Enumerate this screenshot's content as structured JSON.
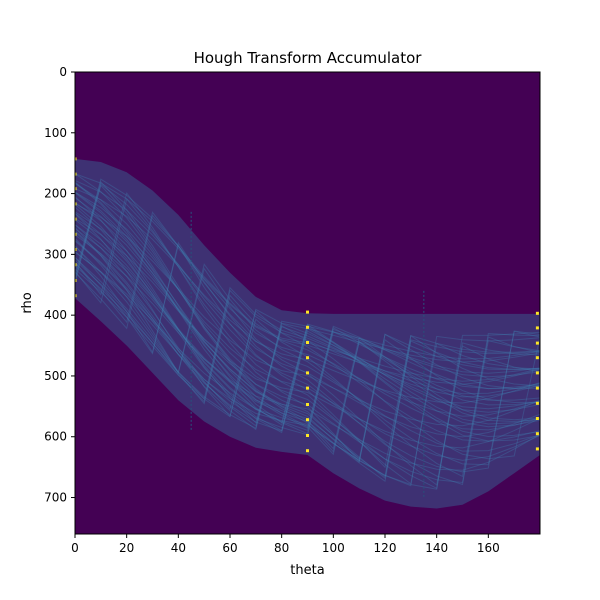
{
  "chart_data": {
    "type": "heatmap",
    "title": "Hough Transform Accumulator",
    "xlabel": "theta",
    "ylabel": "rho",
    "xlim": [
      0,
      180
    ],
    "ylim": [
      760,
      0
    ],
    "y_inverted": true,
    "colormap": "viridis",
    "background_color": "#440154",
    "band_color": "#3b5a8c",
    "peak_color": "#fde725",
    "x_ticks": [
      0,
      20,
      40,
      60,
      80,
      100,
      120,
      140,
      160
    ],
    "y_ticks": [
      0,
      100,
      200,
      300,
      400,
      500,
      600,
      700
    ],
    "band": {
      "theta": [
        0,
        10,
        20,
        30,
        40,
        50,
        60,
        70,
        80,
        90,
        100,
        110,
        120,
        130,
        140,
        150,
        160,
        170,
        180
      ],
      "upper_rho": [
        143,
        148,
        165,
        195,
        235,
        285,
        330,
        370,
        392,
        397,
        398,
        398,
        398,
        398,
        398,
        398,
        398,
        398,
        398
      ],
      "lower_rho": [
        372,
        410,
        450,
        495,
        540,
        575,
        600,
        618,
        625,
        630,
        660,
        685,
        705,
        715,
        718,
        712,
        690,
        660,
        630
      ]
    },
    "peaks": {
      "theta_0": {
        "theta": 0,
        "rho": [
          143,
          168,
          192,
          217,
          242,
          267,
          292,
          317,
          343,
          368
        ]
      },
      "theta_90": {
        "theta": 90,
        "rho": [
          395,
          420,
          445,
          470,
          495,
          520,
          547,
          572,
          598,
          623
        ]
      },
      "theta_180": {
        "theta": 179,
        "rho": [
          397,
          421,
          446,
          470,
          495,
          520,
          545,
          570,
          595,
          620
        ]
      }
    }
  }
}
